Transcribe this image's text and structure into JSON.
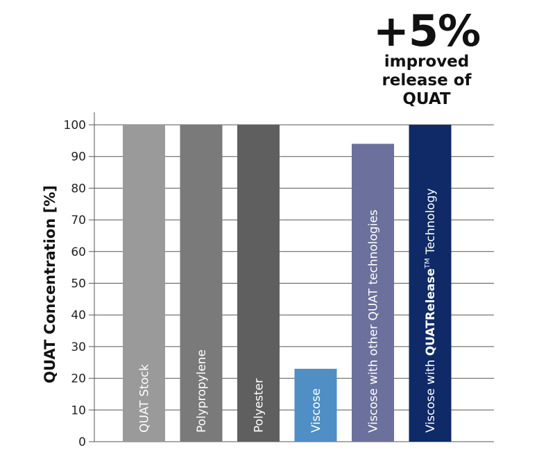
{
  "chart_data": {
    "type": "bar",
    "ylabel": "QUAT Concentration [%]",
    "ylim": [
      0,
      100
    ],
    "yticks": [
      "0",
      "10",
      "20",
      "30",
      "40",
      "50",
      "60",
      "70",
      "80",
      "90",
      "100"
    ],
    "grid": true,
    "bars": [
      {
        "label": "QUAT Stock",
        "value": 100,
        "color": "#9a9a9a"
      },
      {
        "label": "Polypropylene",
        "value": 100,
        "color": "#7a7a7a"
      },
      {
        "label": "Polyester",
        "value": 100,
        "color": "#5f5f5f"
      },
      {
        "label": "Viscose",
        "value": 23,
        "color": "#4f8fc6"
      },
      {
        "label": "Viscose with other QUAT technologies",
        "value": 94,
        "color": "#6c709c"
      },
      {
        "label_prefix": "Viscose with ",
        "label_bold": "QUATRelease",
        "label_tm": "TM",
        "label_suffix": " Technology",
        "value": 100,
        "color": "#0f2a66"
      }
    ],
    "annotation": {
      "headline": "+5%",
      "lines": [
        "improved",
        "release of",
        "QUAT"
      ]
    }
  }
}
